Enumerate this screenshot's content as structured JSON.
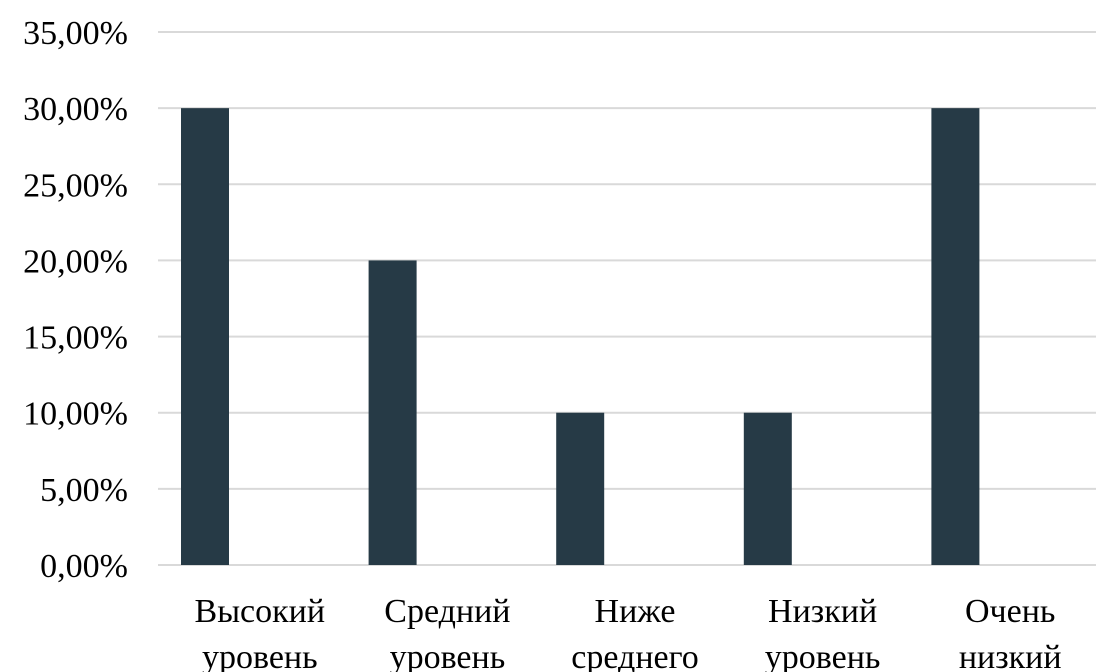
{
  "chart_data": {
    "type": "bar",
    "categories": [
      [
        "Высокий",
        "уровень"
      ],
      [
        "Средний",
        "уровень"
      ],
      [
        "Ниже",
        "среднего"
      ],
      [
        "Низкий",
        "уровень"
      ],
      [
        "Очень",
        "низкий"
      ]
    ],
    "values": [
      30,
      20,
      10,
      10,
      30
    ],
    "y_tick_labels": [
      "0,00%",
      "5,00%",
      "10,00%",
      "15,00%",
      "20,00%",
      "25,00%",
      "30,00%",
      "35,00%"
    ],
    "ylim": [
      0,
      35
    ],
    "y_step": 5,
    "grid": true,
    "bar_color": "#263a46",
    "title": "",
    "xlabel": "",
    "ylabel": ""
  }
}
